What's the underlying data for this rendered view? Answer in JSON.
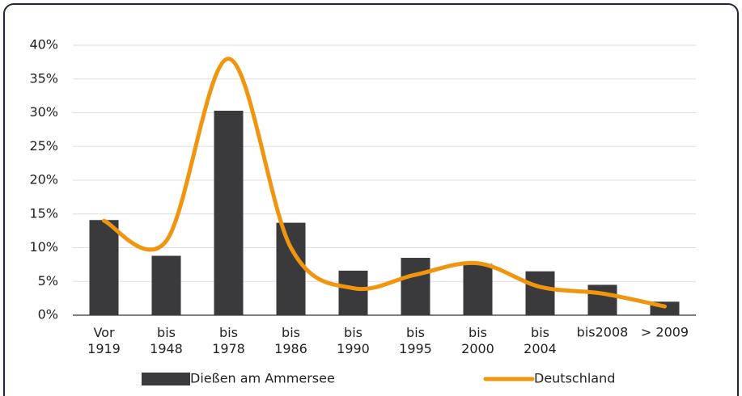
{
  "chart_data": {
    "type": "bar-line",
    "categories": [
      "Vor\n1919",
      "bis\n1948",
      "bis\n1978",
      "bis\n1986",
      "bis\n1990",
      "bis\n1995",
      "bis\n2000",
      "bis\n2004",
      "bis2008",
      "> 2009"
    ],
    "series": [
      {
        "name": "Dießen am Ammersee",
        "type": "bar",
        "color": "#3a3a3c",
        "values": [
          14.1,
          8.8,
          30.3,
          13.7,
          6.6,
          8.5,
          7.6,
          6.5,
          4.5,
          2.0
        ]
      },
      {
        "name": "Deutschland",
        "type": "line",
        "color": "#f0950f",
        "values": [
          14.0,
          11.0,
          38.0,
          10.0,
          4.0,
          6.0,
          7.7,
          4.2,
          3.2,
          1.3
        ]
      }
    ],
    "ylim": [
      0,
      40
    ],
    "yticks": [
      {
        "value": 0,
        "label": "0%"
      },
      {
        "value": 5,
        "label": "5%"
      },
      {
        "value": 10,
        "label": "10%"
      },
      {
        "value": 15,
        "label": "15%"
      },
      {
        "value": 20,
        "label": "20%"
      },
      {
        "value": 25,
        "label": "25%"
      },
      {
        "value": 30,
        "label": "30%"
      },
      {
        "value": 35,
        "label": "35%"
      },
      {
        "value": 40,
        "label": "40%"
      }
    ],
    "grid": true
  }
}
